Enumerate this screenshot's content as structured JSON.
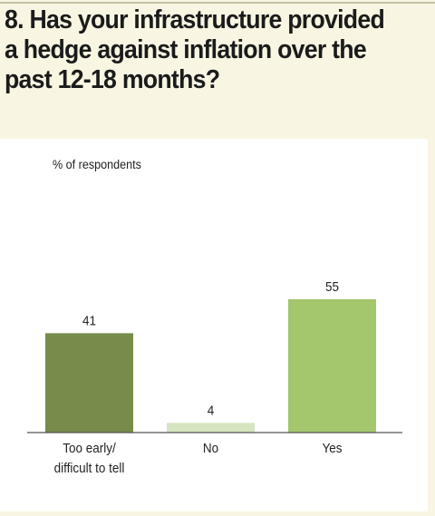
{
  "title": {
    "lines": [
      "8. Has your infrastructure provided",
      "a hedge against inflation over the",
      "past 12-18 months?"
    ]
  },
  "chart_data": {
    "type": "bar",
    "title": "8. Has your infrastructure provided a hedge against inflation over the past 12-18 months?",
    "ylabel": "% of respondents",
    "xlabel": "",
    "categories": [
      [
        "Too early/",
        "difficult to tell"
      ],
      [
        "No"
      ],
      [
        "Yes"
      ]
    ],
    "values": [
      41,
      4,
      55
    ],
    "value_labels": [
      "41",
      "4",
      "55"
    ],
    "colors": [
      "#778b4a",
      "#d5e5c0",
      "#a4c66c"
    ],
    "ylim": [
      0,
      60
    ],
    "grid": false,
    "legend": "none"
  }
}
